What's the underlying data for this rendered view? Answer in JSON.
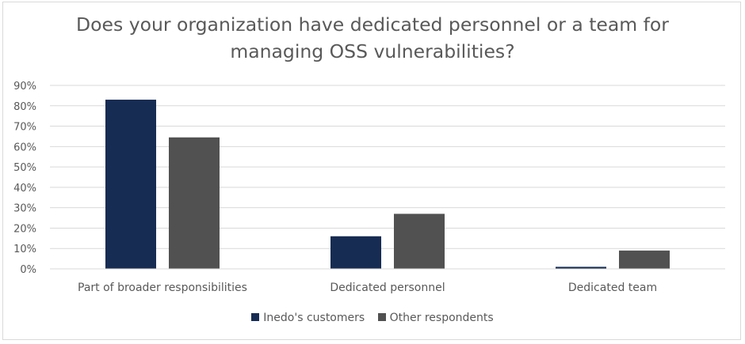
{
  "chart_data": {
    "type": "bar",
    "title_lines": [
      "Does your organization have dedicated personnel or a team for",
      "managing OSS vulnerabilities?"
    ],
    "categories": [
      "Part of broader responsibilities",
      "Dedicated personnel",
      "Dedicated team"
    ],
    "series": [
      {
        "name": "Inedo's customers",
        "color": "#172c53",
        "values": [
          83,
          16,
          1
        ]
      },
      {
        "name": "Other respondents",
        "color": "#515151",
        "values": [
          64.5,
          27,
          9
        ]
      }
    ],
    "yticks": [
      "0%",
      "10%",
      "20%",
      "30%",
      "40%",
      "50%",
      "60%",
      "70%",
      "80%",
      "90%"
    ],
    "ylim": [
      0,
      90
    ],
    "grid": true,
    "legend_position": "bottom"
  }
}
